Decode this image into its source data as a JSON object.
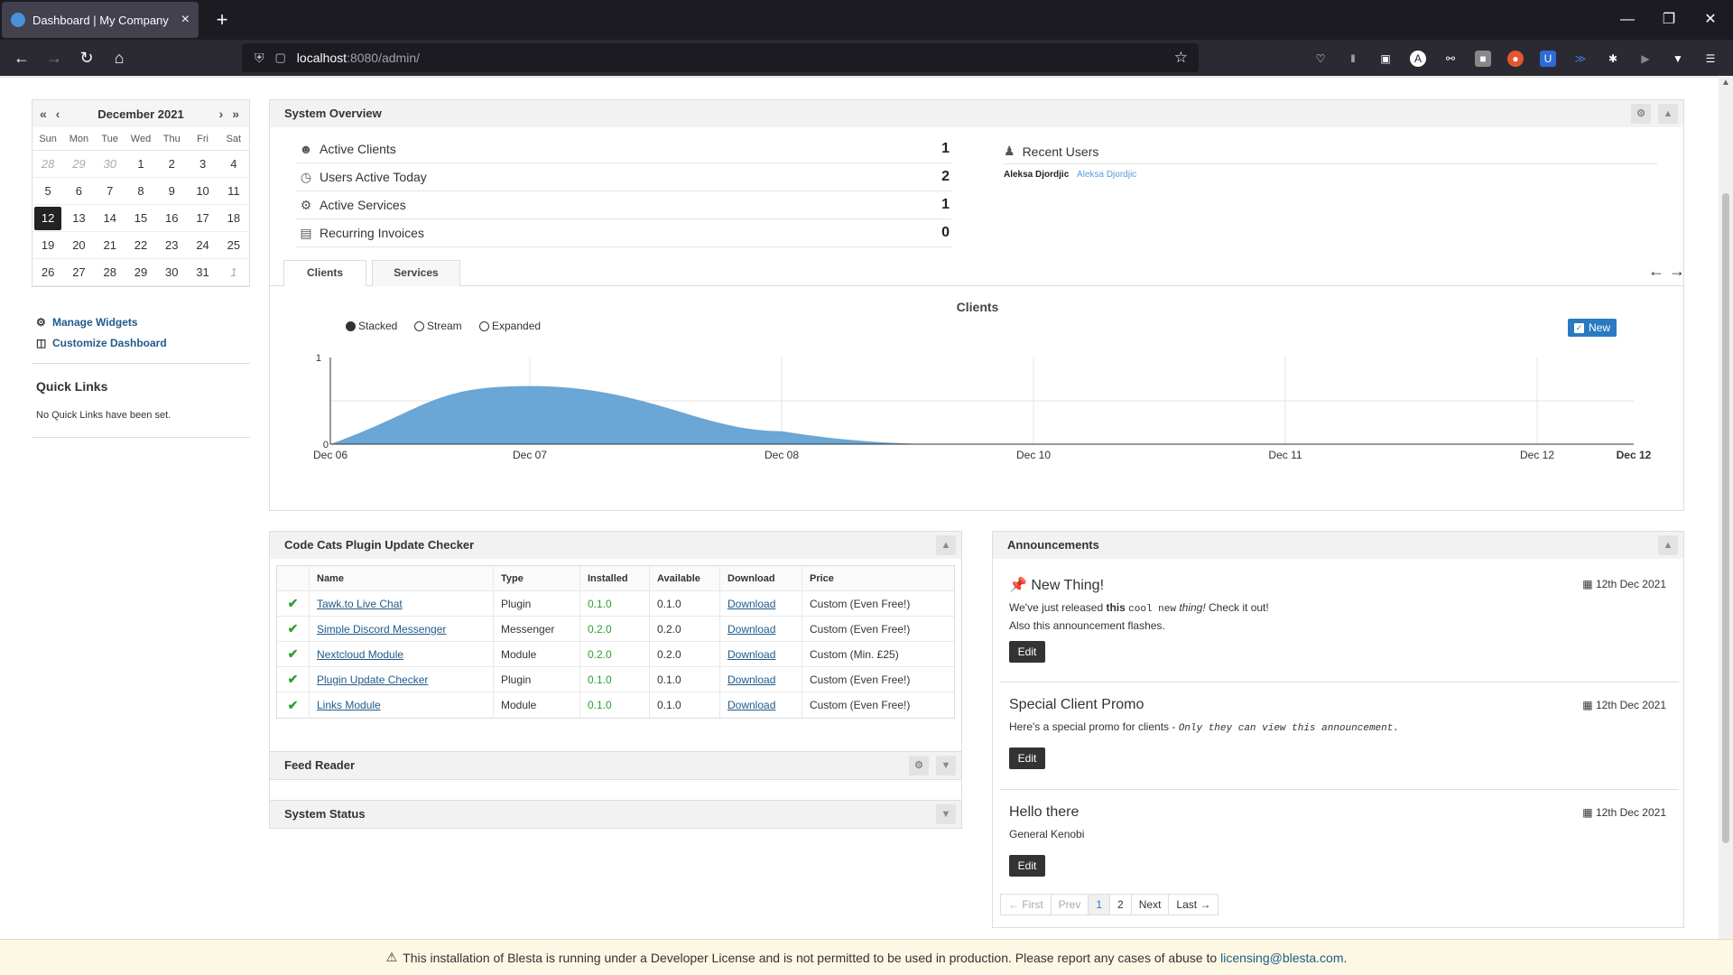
{
  "browser": {
    "tab_title": "Dashboard | My Company",
    "url_host": "localhost",
    "url_path": ":8080/admin/",
    "new_tab": "+",
    "close_tab": "×"
  },
  "calendar": {
    "month_label": "December 2021",
    "prev_nav": "« ‹",
    "next_nav": "› »",
    "weekdays": [
      "Sun",
      "Mon",
      "Tue",
      "Wed",
      "Thu",
      "Fri",
      "Sat"
    ],
    "weeks": [
      [
        "28",
        "29",
        "30",
        "1",
        "2",
        "3",
        "4"
      ],
      [
        "5",
        "6",
        "7",
        "8",
        "9",
        "10",
        "11"
      ],
      [
        "12",
        "13",
        "14",
        "15",
        "16",
        "17",
        "18"
      ],
      [
        "19",
        "20",
        "21",
        "22",
        "23",
        "24",
        "25"
      ],
      [
        "26",
        "27",
        "28",
        "29",
        "30",
        "31",
        "1"
      ]
    ]
  },
  "sidebar": {
    "manage_widgets": "Manage Widgets",
    "customize_dashboard": "Customize Dashboard",
    "quick_links_title": "Quick Links",
    "quick_links_empty": "No Quick Links have been set."
  },
  "overview": {
    "title": "System Overview",
    "stats": [
      {
        "label": "Active Clients",
        "value": "1"
      },
      {
        "label": "Users Active Today",
        "value": "2"
      },
      {
        "label": "Active Services",
        "value": "1"
      },
      {
        "label": "Recurring Invoices",
        "value": "0"
      }
    ],
    "recent_users_title": "Recent Users",
    "recent_user_name": "Aleksa Djordjic",
    "recent_user_link": "Aleksa Djordjic",
    "tabs": [
      "Clients",
      "Services"
    ],
    "chart_title": "Clients",
    "modes": [
      "Stacked",
      "Stream",
      "Expanded"
    ],
    "new_label": "New"
  },
  "chart_data": {
    "type": "area",
    "title": "Clients",
    "x": [
      "Dec 06",
      "Dec 07",
      "Dec 08",
      "Dec 10",
      "Dec 11",
      "Dec 12",
      "Dec 12"
    ],
    "y_ticks": [
      "0",
      "1"
    ],
    "ylim": [
      0,
      1
    ],
    "series": [
      {
        "values": [
          0,
          0.67,
          0.15,
          0,
          0,
          0,
          0
        ]
      }
    ],
    "color": "#6aa6d6"
  },
  "plugins": {
    "title": "Code Cats Plugin Update Checker",
    "columns": [
      "Name",
      "Type",
      "Installed",
      "Available",
      "Download",
      "Price"
    ],
    "rows": [
      {
        "name": "Tawk.to Live Chat",
        "type": "Plugin",
        "installed": "0.1.0",
        "available": "0.1.0",
        "download": "Download",
        "price": "Custom (Even Free!)"
      },
      {
        "name": "Simple Discord Messenger",
        "type": "Messenger",
        "installed": "0.2.0",
        "available": "0.2.0",
        "download": "Download",
        "price": "Custom (Even Free!)"
      },
      {
        "name": "Nextcloud Module",
        "type": "Module",
        "installed": "0.2.0",
        "available": "0.2.0",
        "download": "Download",
        "price": "Custom (Min. £25)"
      },
      {
        "name": "Plugin Update Checker",
        "type": "Plugin",
        "installed": "0.1.0",
        "available": "0.1.0",
        "download": "Download",
        "price": "Custom (Even Free!)"
      },
      {
        "name": "Links Module",
        "type": "Module",
        "installed": "0.1.0",
        "available": "0.1.0",
        "download": "Download",
        "price": "Custom (Even Free!)"
      }
    ]
  },
  "feed_reader": {
    "title": "Feed Reader"
  },
  "system_status": {
    "title": "System Status"
  },
  "announcements": {
    "title": "Announcements",
    "items": [
      {
        "title": "New Thing!",
        "date": "12th Dec 2021",
        "line1_a": "We've just released ",
        "line1_b": "this",
        "line1_c": "cool new",
        "line1_d": "thing!",
        "line1_e": " Check it out!",
        "line2": "Also this announcement flashes.",
        "edit": "Edit"
      },
      {
        "title": "Special Client Promo",
        "date": "12th Dec 2021",
        "line1_a": "Here's a special promo for clients - ",
        "line1_b": "Only they can view this announcement.",
        "edit": "Edit"
      },
      {
        "title": "Hello there",
        "date": "12th Dec 2021",
        "line1_a": "General Kenobi",
        "edit": "Edit"
      }
    ],
    "pager": [
      "← First",
      "Prev",
      "1",
      "2",
      "Next",
      "Last →"
    ]
  },
  "license": {
    "text": "This installation of Blesta is running under a Developer License and is not permitted to be used in production. Please report any cases of abuse to",
    "email": "licensing@blesta.com",
    "end": "."
  }
}
